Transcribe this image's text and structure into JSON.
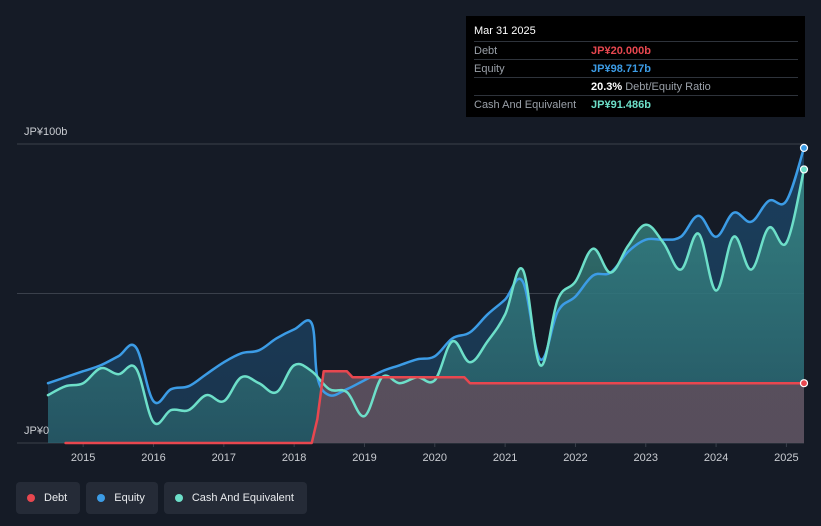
{
  "tooltip": {
    "date": "Mar 31 2025",
    "rows": [
      {
        "label": "Debt",
        "value": "JP¥20.000b",
        "color": "#e8474f"
      },
      {
        "label": "Equity",
        "value": "JP¥98.717b",
        "color": "#3c9ce6"
      },
      {
        "label": "",
        "value": "20.3%",
        "suffix": "Debt/Equity Ratio",
        "color": "#ffffff"
      },
      {
        "label": "Cash And Equivalent",
        "value": "JP¥91.486b",
        "color": "#6ddfc9"
      }
    ]
  },
  "legend": [
    {
      "label": "Debt",
      "color": "#e8474f"
    },
    {
      "label": "Equity",
      "color": "#3c9ce6"
    },
    {
      "label": "Cash And Equivalent",
      "color": "#6ddfc9"
    }
  ],
  "colors": {
    "background": "#151b26",
    "debt": "#e8474f",
    "equity": "#3c9ce6",
    "cash": "#6ddfc9"
  },
  "chart_data": {
    "type": "area",
    "y_tick_labels": [
      "JP¥100b",
      "JP¥0"
    ],
    "ylim": [
      0,
      100
    ],
    "xlim": [
      2014.5,
      2025.25
    ],
    "x_tick_labels": [
      "2015",
      "2016",
      "2017",
      "2018",
      "2019",
      "2020",
      "2021",
      "2022",
      "2023",
      "2024",
      "2025"
    ],
    "grid": true,
    "legend_position": "bottom-left",
    "series": [
      {
        "name": "Debt",
        "color": "#e8474f",
        "x": [
          2014.75,
          2018.25,
          2018.33,
          2018.42,
          2018.75,
          2018.83,
          2020.25,
          2020.42,
          2020.5,
          2025.25
        ],
        "values": [
          0,
          0,
          8,
          24,
          24,
          22,
          22,
          22,
          20,
          20
        ]
      },
      {
        "name": "Equity",
        "color": "#3c9ce6",
        "x": [
          2014.5,
          2014.75,
          2015.0,
          2015.25,
          2015.5,
          2015.75,
          2016.0,
          2016.25,
          2016.5,
          2016.75,
          2017.0,
          2017.25,
          2017.5,
          2017.75,
          2018.0,
          2018.25,
          2018.33,
          2018.5,
          2018.75,
          2019.0,
          2019.25,
          2019.5,
          2019.75,
          2020.0,
          2020.25,
          2020.5,
          2020.75,
          2021.0,
          2021.25,
          2021.5,
          2021.75,
          2022.0,
          2022.25,
          2022.5,
          2022.75,
          2023.0,
          2023.25,
          2023.5,
          2023.75,
          2024.0,
          2024.25,
          2024.5,
          2024.75,
          2025.0,
          2025.25
        ],
        "values": [
          20,
          22,
          24,
          26,
          29,
          32,
          14,
          18,
          19,
          23,
          27,
          30,
          31,
          35,
          38,
          40,
          22,
          16,
          18,
          21,
          24,
          26,
          28,
          29,
          35,
          37,
          43,
          48,
          54,
          28,
          44,
          49,
          56,
          57,
          64,
          68,
          68,
          69,
          76,
          69,
          77,
          74,
          81,
          81,
          98.7
        ]
      },
      {
        "name": "Cash And Equivalent",
        "color": "#6ddfc9",
        "x": [
          2014.5,
          2014.75,
          2015.0,
          2015.25,
          2015.5,
          2015.75,
          2016.0,
          2016.25,
          2016.5,
          2016.75,
          2017.0,
          2017.25,
          2017.5,
          2017.75,
          2018.0,
          2018.25,
          2018.5,
          2018.75,
          2019.0,
          2019.25,
          2019.5,
          2019.75,
          2020.0,
          2020.25,
          2020.5,
          2020.75,
          2021.0,
          2021.25,
          2021.5,
          2021.75,
          2022.0,
          2022.25,
          2022.5,
          2022.75,
          2023.0,
          2023.25,
          2023.5,
          2023.75,
          2024.0,
          2024.25,
          2024.5,
          2024.75,
          2025.0,
          2025.25
        ],
        "values": [
          16,
          19,
          20,
          25,
          23,
          25,
          7,
          11,
          11,
          16,
          14,
          22,
          20,
          17,
          26,
          24,
          18,
          17,
          9,
          22,
          20,
          22,
          21,
          34,
          27,
          34,
          43,
          58,
          26,
          48,
          54,
          65,
          57,
          66,
          73,
          67,
          58,
          70,
          51,
          69,
          58,
          72,
          67,
          91.5
        ]
      }
    ]
  }
}
